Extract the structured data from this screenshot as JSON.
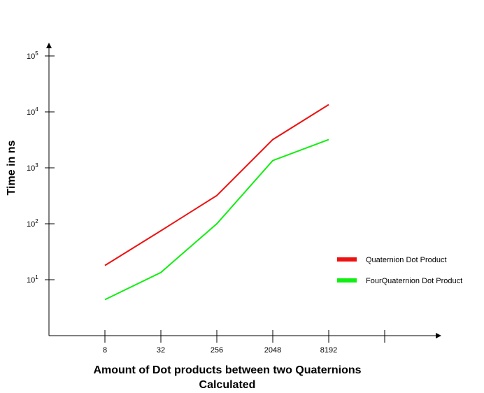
{
  "chart_data": {
    "type": "line",
    "title": "",
    "ylabel": "Time in ns",
    "xlabel_lines": [
      "Amount of Dot products between two Quaternions",
      "Calculated"
    ],
    "y_scale": "log",
    "ylim": [
      1,
      100000
    ],
    "y_ticks": [
      {
        "base": "10",
        "exp": "1",
        "value": 10
      },
      {
        "base": "10",
        "exp": "2",
        "value": 100
      },
      {
        "base": "10",
        "exp": "3",
        "value": 1000
      },
      {
        "base": "10",
        "exp": "4",
        "value": 10000
      },
      {
        "base": "10",
        "exp": "5",
        "value": 100000
      }
    ],
    "categories": [
      "8",
      "32",
      "256",
      "2048",
      "8192"
    ],
    "series": [
      {
        "name": "Quaternion Dot Product",
        "color": "#ee1111",
        "values": [
          18,
          75,
          320,
          3200,
          13500
        ]
      },
      {
        "name": "FourQuaternion Dot Product",
        "color": "#11ee11",
        "values": [
          4.4,
          13.5,
          100,
          1350,
          3200
        ]
      }
    ],
    "legend_position": "right",
    "grid": false
  }
}
